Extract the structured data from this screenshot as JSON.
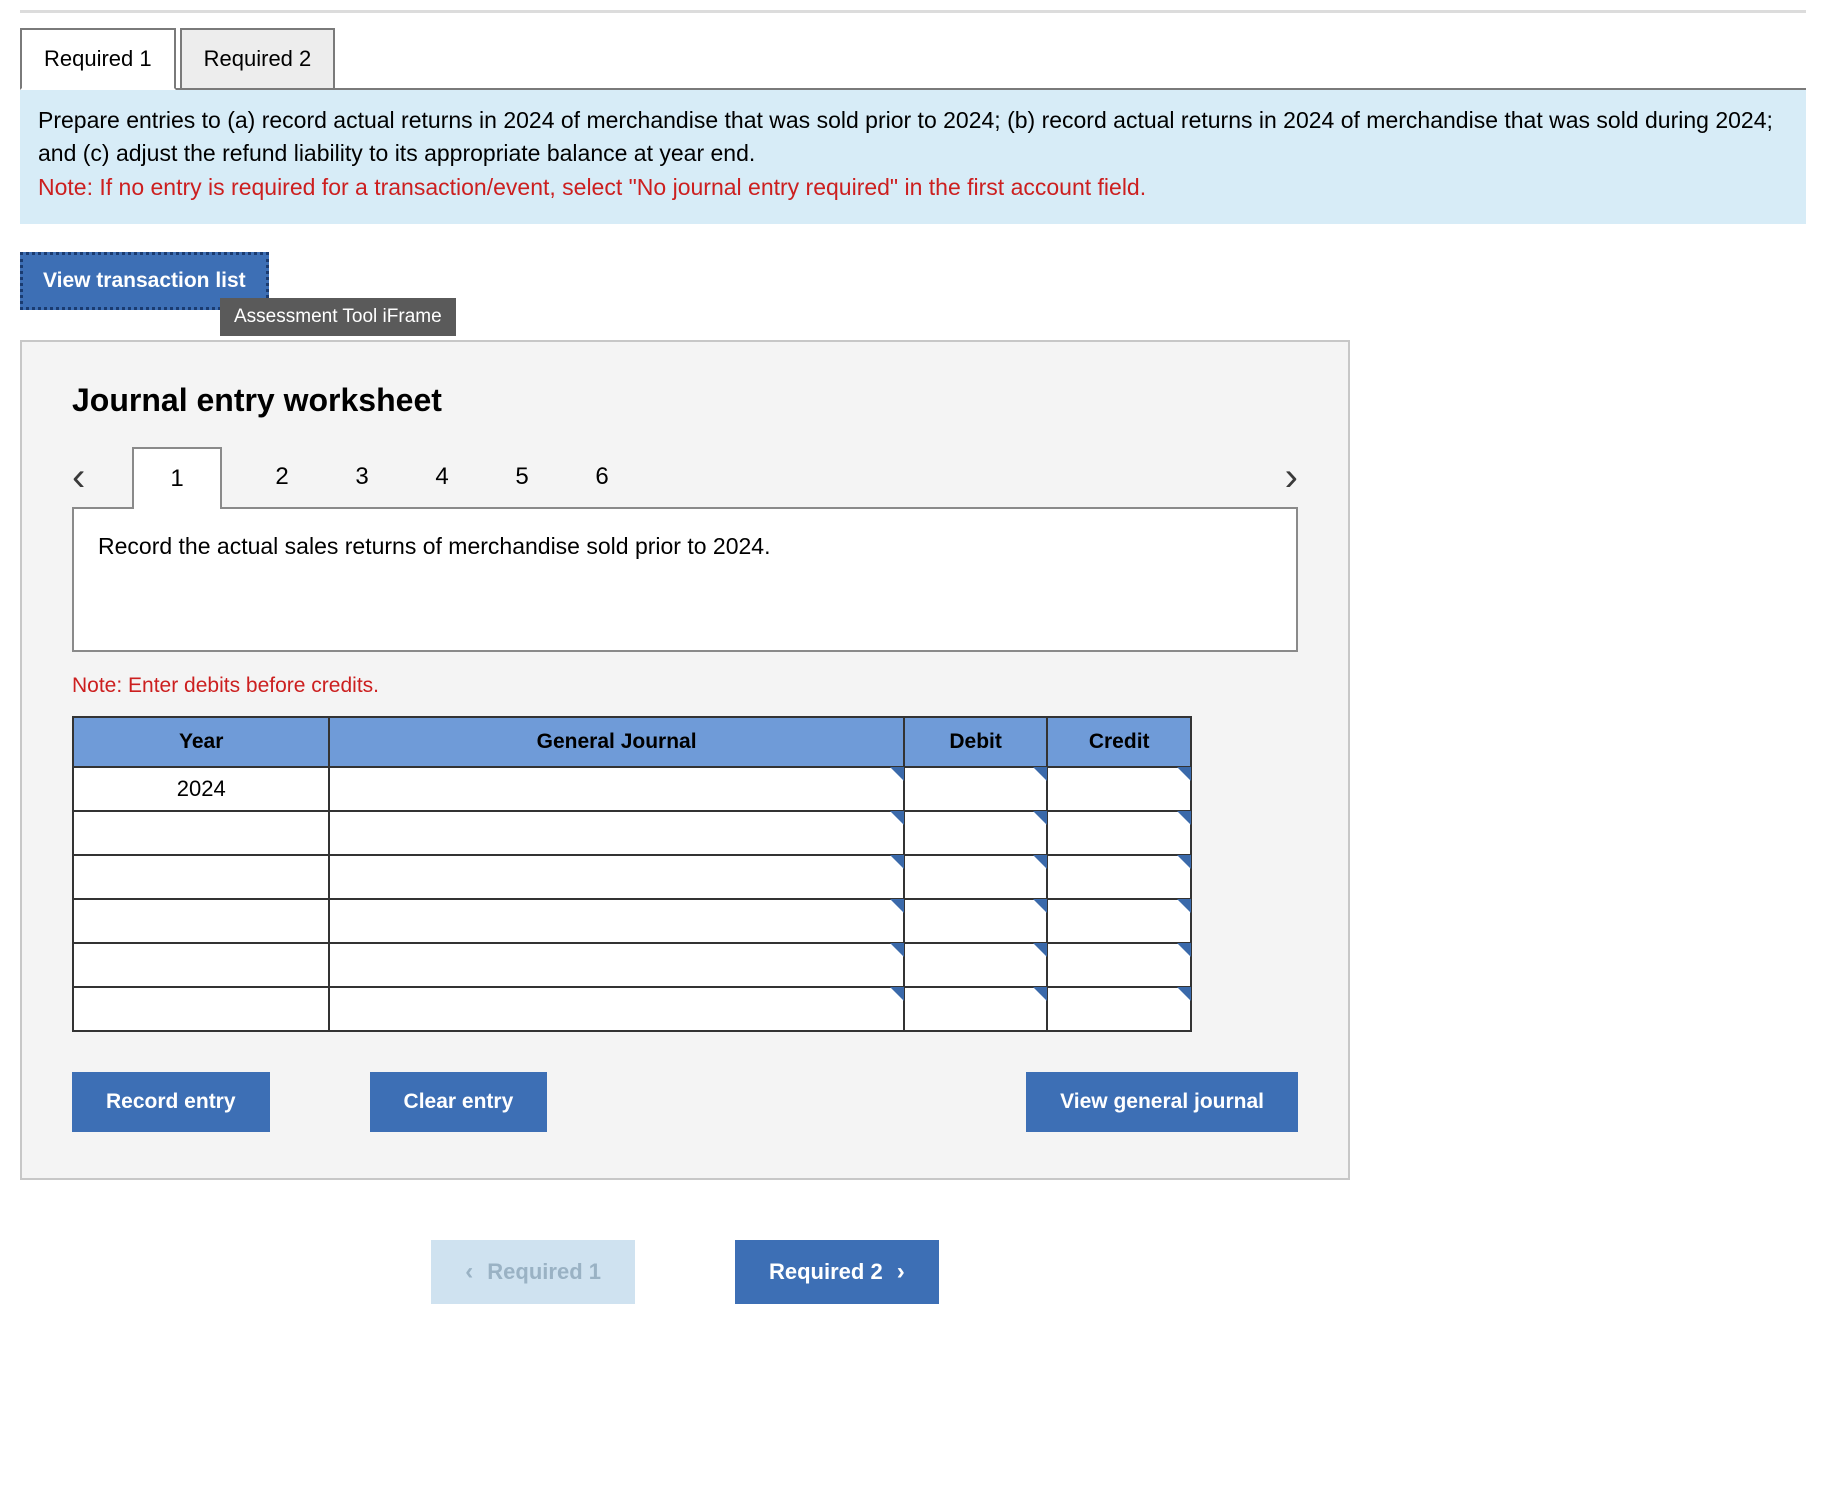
{
  "tabs": {
    "req1": "Required 1",
    "req2": "Required 2"
  },
  "instructions": {
    "body": "Prepare entries to (a) record actual returns in 2024 of merchandise that was sold prior to 2024; (b) record actual returns in 2024 of merchandise that was sold during 2024; and (c) adjust the refund liability to its appropriate balance at year end.",
    "note": "Note: If no entry is required for a transaction/event, select \"No journal entry required\" in the first account field."
  },
  "view_tx_label": "View transaction list",
  "tooltip": "Assessment Tool iFrame",
  "worksheet": {
    "title": "Journal entry worksheet",
    "steps": [
      "1",
      "2",
      "3",
      "4",
      "5",
      "6"
    ],
    "active_step": "1",
    "description": "Record the actual sales returns of merchandise sold prior to 2024.",
    "note": "Note: Enter debits before credits.",
    "columns": {
      "year": "Year",
      "gj": "General Journal",
      "debit": "Debit",
      "credit": "Credit"
    },
    "rows": [
      {
        "year": "2024",
        "gj": "",
        "debit": "",
        "credit": ""
      },
      {
        "year": "",
        "gj": "",
        "debit": "",
        "credit": ""
      },
      {
        "year": "",
        "gj": "",
        "debit": "",
        "credit": ""
      },
      {
        "year": "",
        "gj": "",
        "debit": "",
        "credit": ""
      },
      {
        "year": "",
        "gj": "",
        "debit": "",
        "credit": ""
      },
      {
        "year": "",
        "gj": "",
        "debit": "",
        "credit": ""
      }
    ],
    "buttons": {
      "record": "Record entry",
      "clear": "Clear entry",
      "view": "View general journal"
    }
  },
  "bottom_nav": {
    "prev": "Required 1",
    "next": "Required 2"
  },
  "colors": {
    "accent": "#3d6fb5",
    "header": "#6f9bd8",
    "info_bg": "#d7ecf7",
    "danger": "#cc1f1f"
  }
}
